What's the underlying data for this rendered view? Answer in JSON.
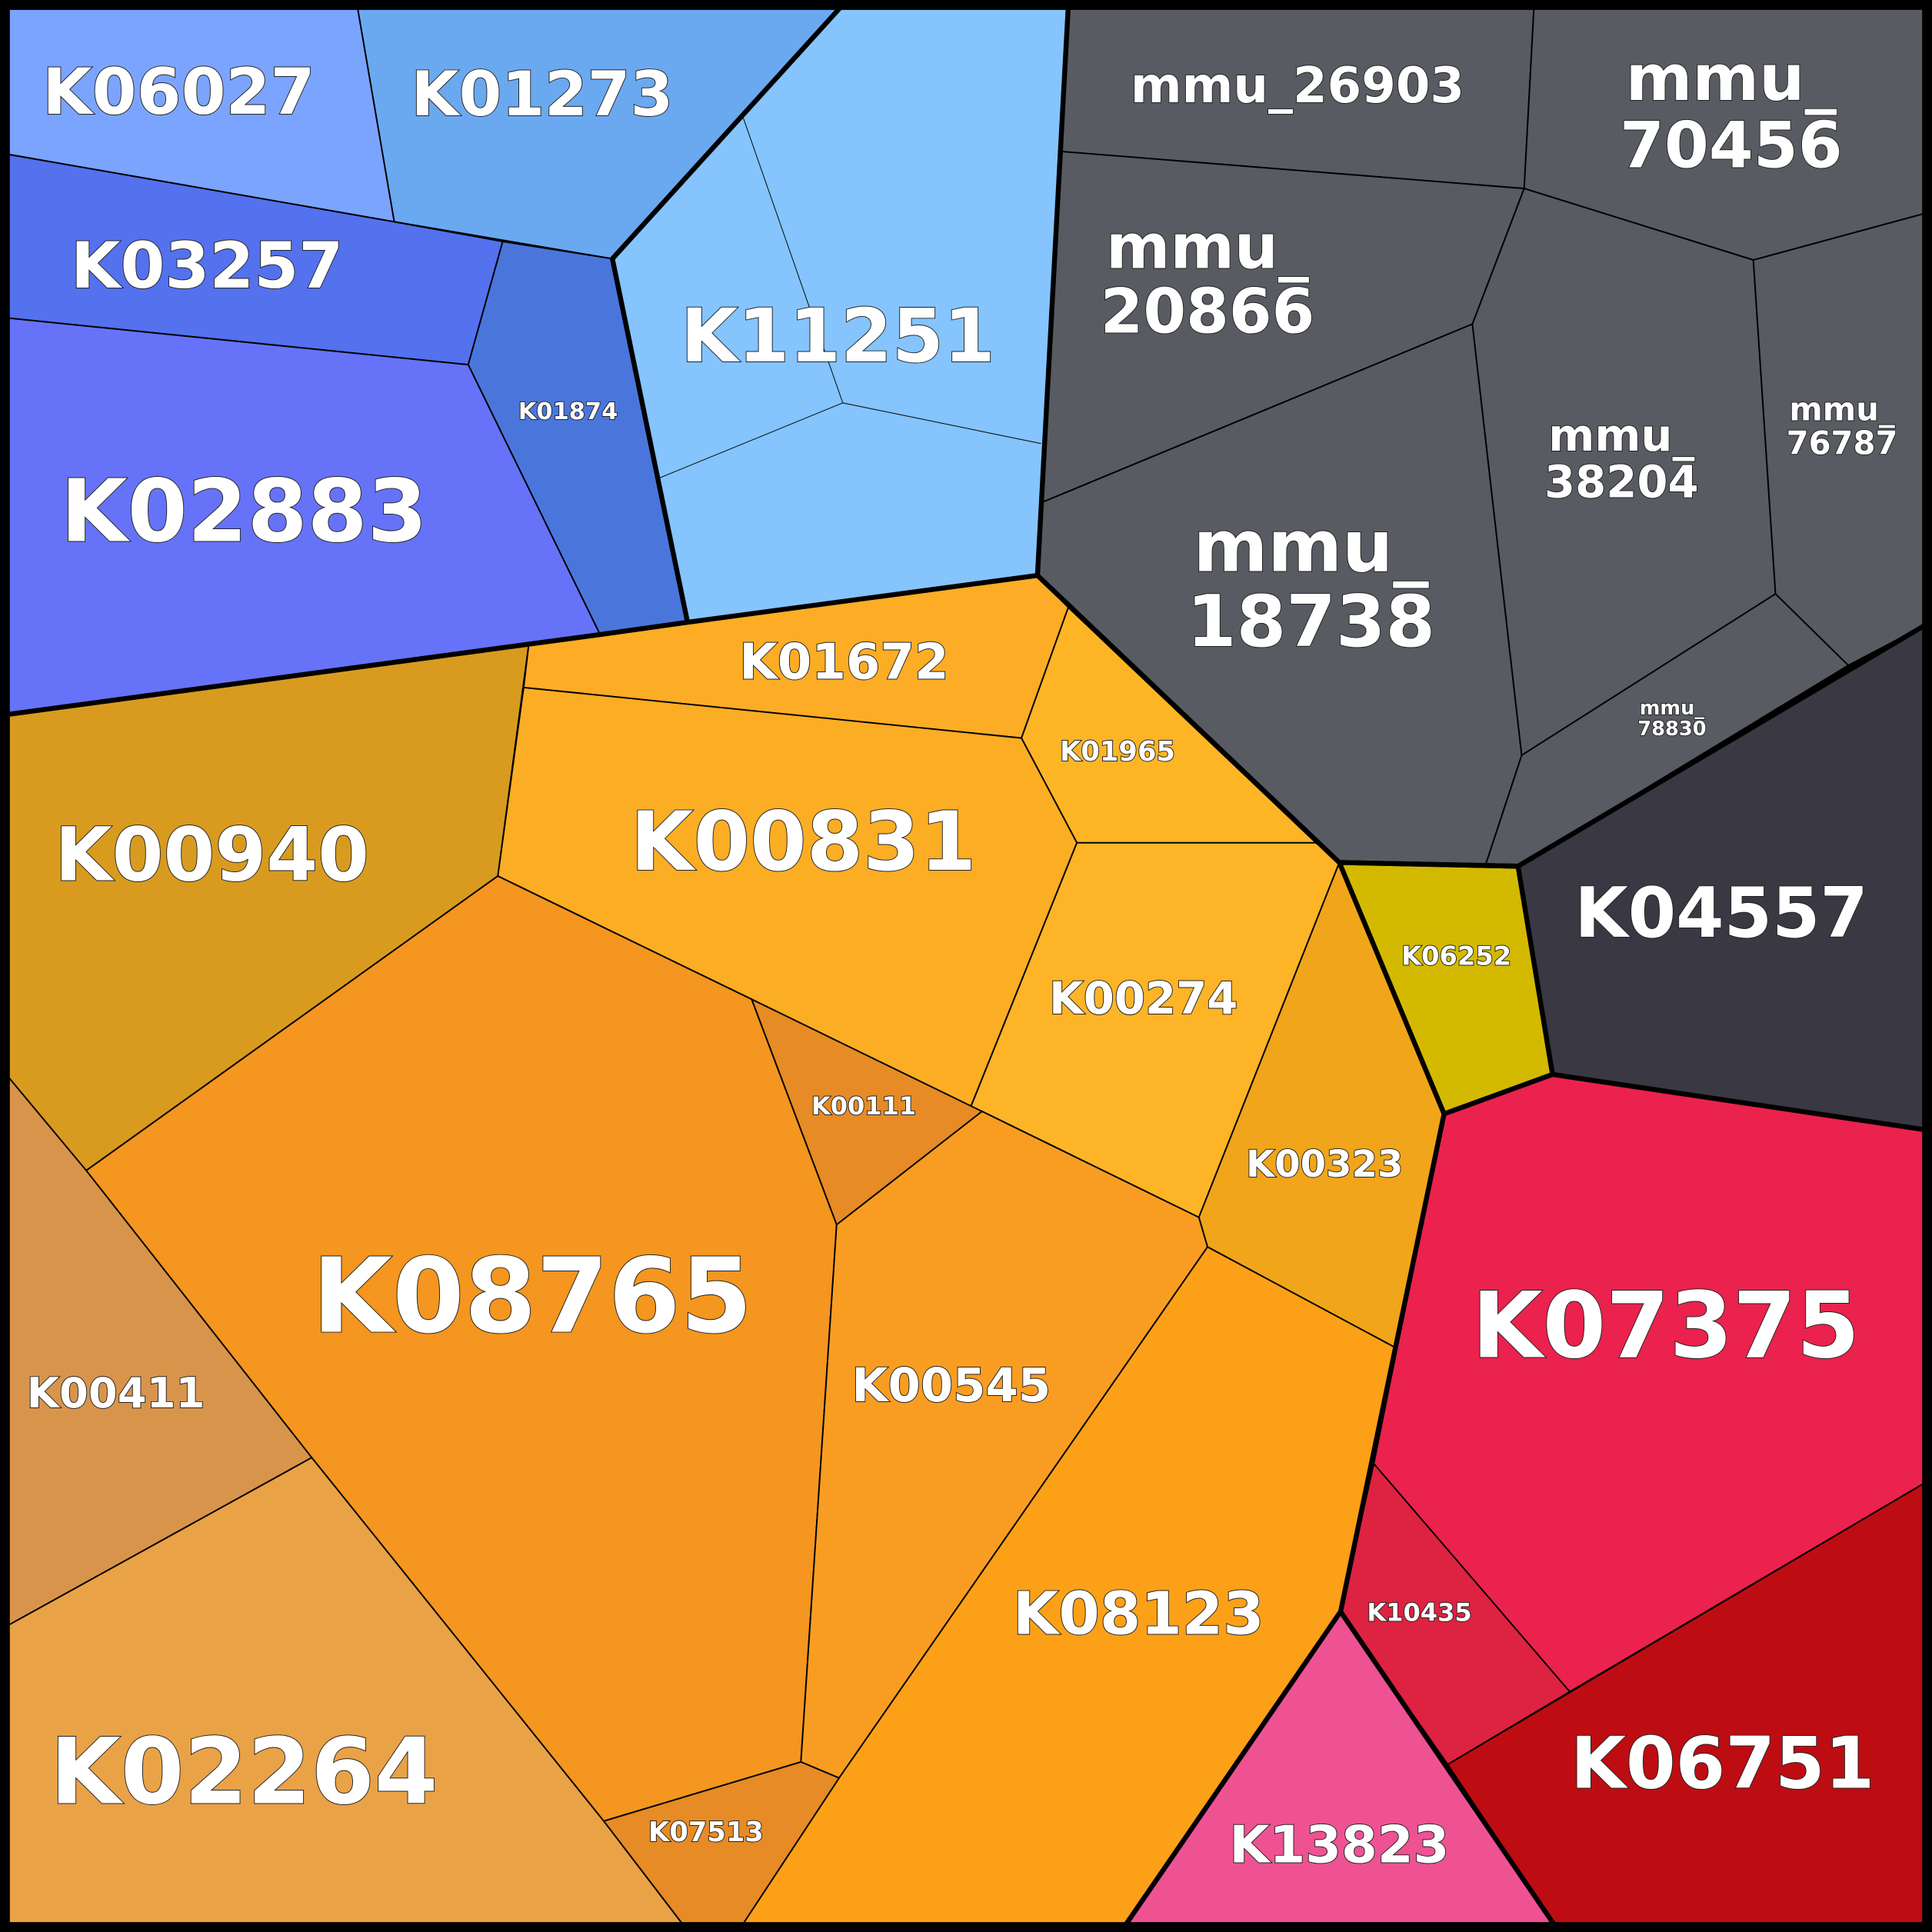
{
  "cells": [
    {
      "label": "K06027"
    },
    {
      "label": "K01273"
    },
    {
      "label": "K03257"
    },
    {
      "label": "K01874"
    },
    {
      "label": "K02883"
    },
    {
      "label": "K11251"
    },
    {
      "lines": [
        "mmu_26903"
      ]
    },
    {
      "lines": [
        "mmu_",
        "70456"
      ]
    },
    {
      "lines": [
        "mmu_",
        "20866"
      ]
    },
    {
      "lines": [
        "mmu_",
        "18738"
      ]
    },
    {
      "lines": [
        "mmu_",
        "38204"
      ]
    },
    {
      "lines": [
        "mmu_",
        "76787"
      ]
    },
    {
      "lines": [
        "mmu_",
        "78830"
      ]
    },
    {
      "label": "K04557"
    },
    {
      "label": "K01672"
    },
    {
      "label": "K01965"
    },
    {
      "label": "K00831"
    },
    {
      "label": "K00940"
    },
    {
      "label": "K00274"
    },
    {
      "label": "K00323"
    },
    {
      "label": "K00111"
    },
    {
      "label": "K08765"
    },
    {
      "label": "K00545"
    },
    {
      "label": "K08123"
    },
    {
      "label": "K07513"
    },
    {
      "label": "K00411"
    },
    {
      "label": "K02264"
    },
    {
      "label": "K06252"
    },
    {
      "label": "K07375"
    },
    {
      "label": "K10435"
    },
    {
      "label": "K06751"
    },
    {
      "label": "K13823"
    }
  ]
}
